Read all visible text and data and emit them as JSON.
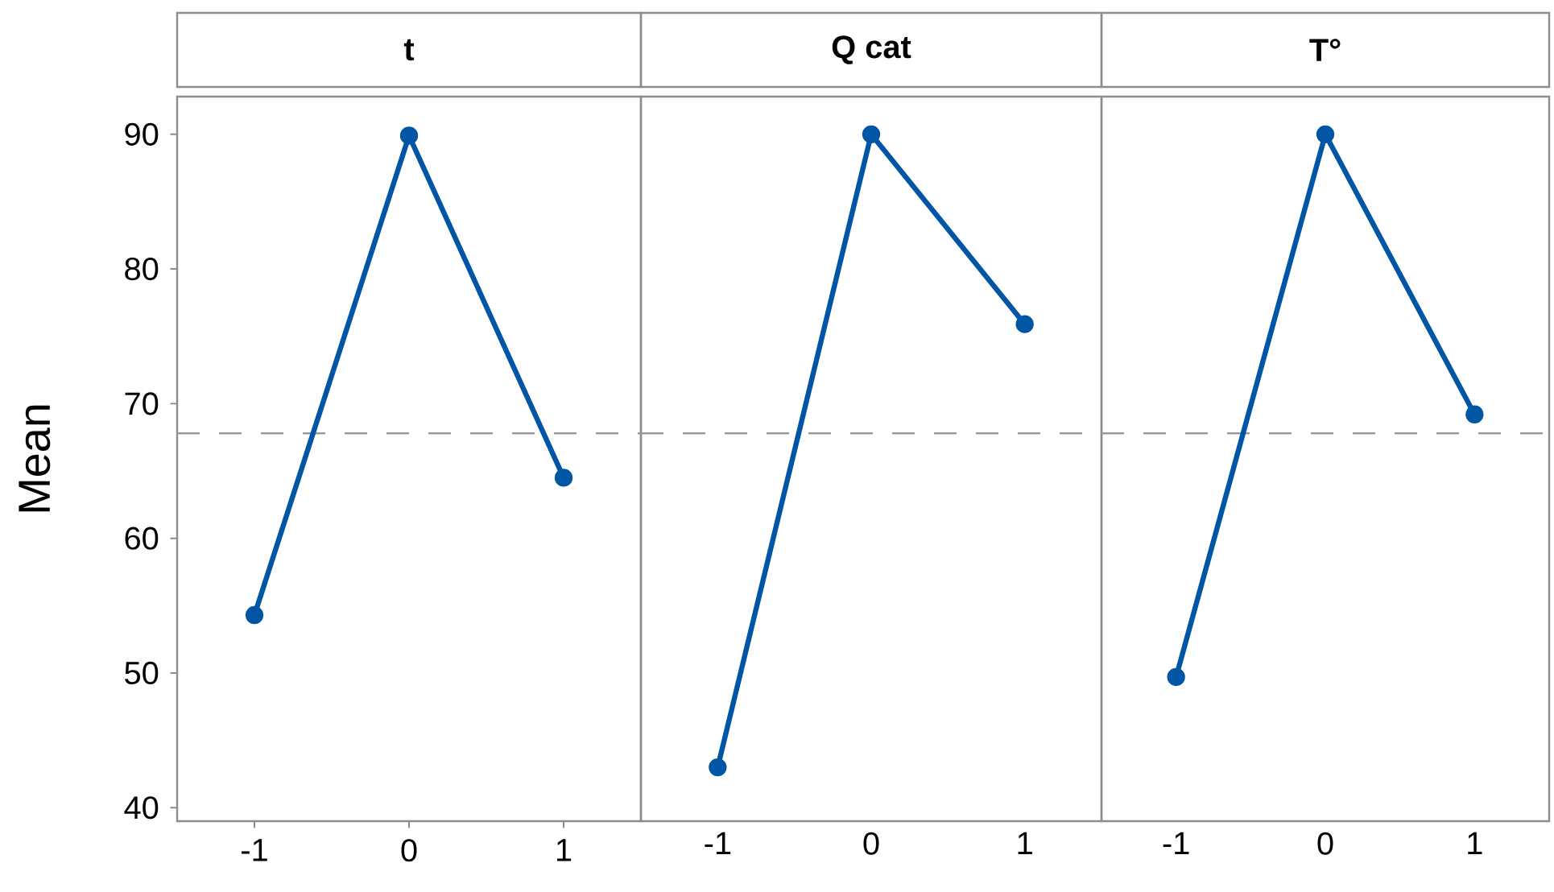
{
  "chart_data": [
    {
      "type": "line",
      "title": "t",
      "ylabel": "Mean",
      "x": [
        -1,
        0,
        1
      ],
      "xlim": [
        -1.5,
        1.5
      ],
      "xticks": [
        -1,
        0,
        1
      ],
      "ylim": [
        39,
        92.8
      ],
      "yticks": [
        40,
        50,
        60,
        70,
        80,
        90
      ],
      "marker": "circle",
      "grid": false,
      "series": [
        {
          "color": "#0055a5",
          "values": [
            54.3,
            89.9,
            64.5
          ]
        }
      ],
      "ref_lines": [
        {
          "axis": "y",
          "value": 67.8,
          "color": "#9a9a9a",
          "line_style": "dashed"
        }
      ]
    },
    {
      "type": "line",
      "title": "Q cat",
      "x": [
        -1,
        0,
        1
      ],
      "xlim": [
        -1.5,
        1.5
      ],
      "xticks": [
        -1,
        0,
        1
      ],
      "ylim": [
        39,
        92.8
      ],
      "yticks": [
        40,
        50,
        60,
        70,
        80,
        90
      ],
      "tick_labels": "x",
      "marker": "circle",
      "grid": false,
      "series": [
        {
          "color": "#0055a5",
          "values": [
            43.0,
            90.0,
            75.9
          ]
        }
      ],
      "ref_lines": [
        {
          "axis": "y",
          "value": 67.8,
          "color": "#9a9a9a",
          "line_style": "dashed"
        }
      ]
    },
    {
      "type": "line",
      "title": "T°",
      "x": [
        -1,
        0,
        1
      ],
      "xlim": [
        -1.5,
        1.5
      ],
      "xticks": [
        -1,
        0,
        1
      ],
      "ylim": [
        39,
        92.8
      ],
      "yticks": [
        40,
        50,
        60,
        70,
        80,
        90
      ],
      "tick_labels": "x",
      "marker": "circle",
      "grid": false,
      "series": [
        {
          "color": "#0055a5",
          "values": [
            49.7,
            90.0,
            69.2
          ]
        }
      ],
      "ref_lines": [
        {
          "axis": "y",
          "value": 67.8,
          "color": "#9a9a9a",
          "line_style": "dashed"
        }
      ]
    }
  ]
}
